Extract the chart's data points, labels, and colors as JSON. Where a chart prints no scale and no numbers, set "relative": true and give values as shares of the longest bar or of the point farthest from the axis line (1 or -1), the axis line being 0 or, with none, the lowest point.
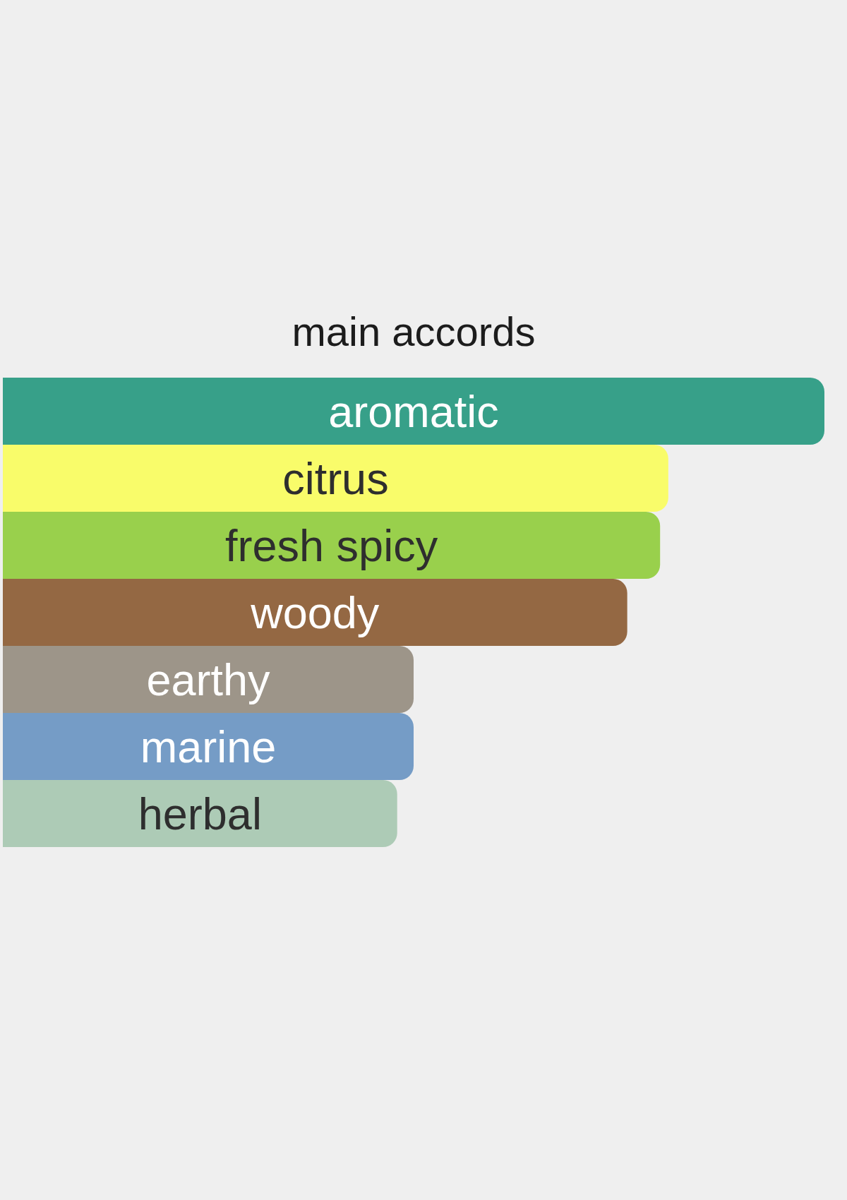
{
  "chart_data": {
    "type": "bar",
    "orientation": "horizontal",
    "relative": true,
    "title": "main accords",
    "categories": [
      "aromatic",
      "citrus",
      "fresh spicy",
      "woody",
      "earthy",
      "marine",
      "herbal"
    ],
    "values": [
      1,
      0.81,
      0.8,
      0.76,
      0.5,
      0.5,
      0.48
    ],
    "colors": [
      "#37a089",
      "#f9fc6a",
      "#99d04c",
      "#946843",
      "#9d9589",
      "#759cc6",
      "#adcbb6"
    ]
  }
}
